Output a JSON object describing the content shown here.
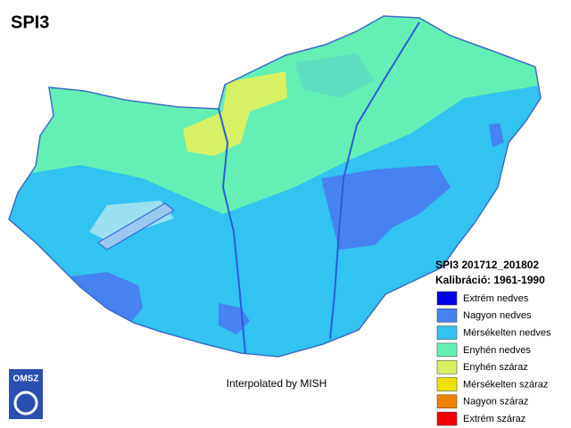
{
  "title": "SPI3",
  "legend": {
    "title": "SPI3 201712_201802",
    "subtitle": "Kalibráció: 1961-1990",
    "items": [
      {
        "label": "Extrém nedves",
        "color": "#0000e6"
      },
      {
        "label": "Nagyon nedves",
        "color": "#4682f0"
      },
      {
        "label": "Mérsékelten nedves",
        "color": "#32c3f0"
      },
      {
        "label": "Enyhén nedves",
        "color": "#64f0b4"
      },
      {
        "label": "Enyhén száraz",
        "color": "#d7f064"
      },
      {
        "label": "Mérsékelten száraz",
        "color": "#f0e100"
      },
      {
        "label": "Nagyon száraz",
        "color": "#f08200"
      },
      {
        "label": "Extrém száraz",
        "color": "#f00000"
      }
    ]
  },
  "credit": "Interpolated by MISH",
  "logo": {
    "text": "OMSZ"
  }
}
